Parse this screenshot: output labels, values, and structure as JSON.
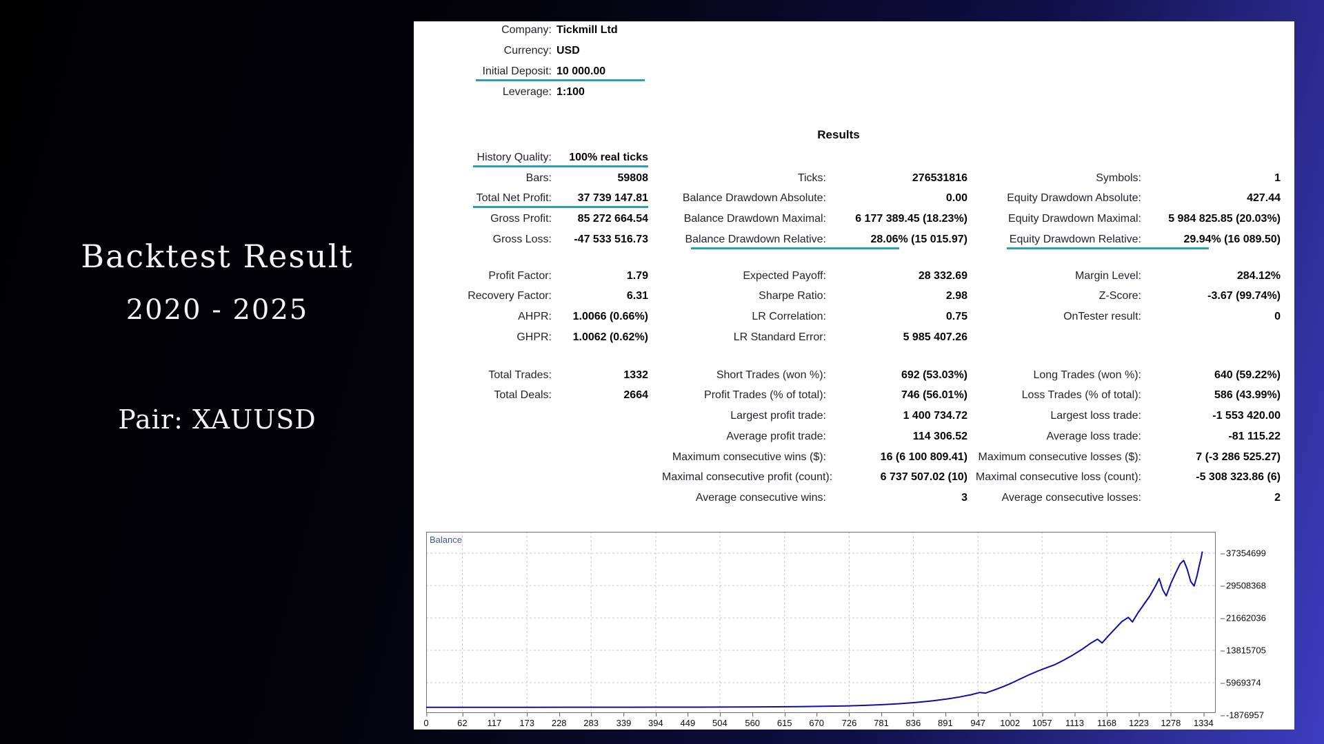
{
  "page": {
    "title_line1": "Backtest Result",
    "title_line2": "2020 - 2025",
    "pair_line": "Pair: XAUUSD"
  },
  "colors": {
    "background_left": "#010102",
    "background_right": "#3d3dc0",
    "underline_teal": "#2aa0b4",
    "curve_blue": "#0d0da8",
    "panel_white": "#ffffff"
  },
  "header": {
    "rows": [
      {
        "label": "Company:",
        "value": "Tickmill Ltd",
        "underline": false
      },
      {
        "label": "Currency:",
        "value": "USD",
        "underline": false
      },
      {
        "label": "Initial Deposit:",
        "value": "10 000.00",
        "underline": true
      },
      {
        "label": "Leverage:",
        "value": "1:100",
        "underline": false
      }
    ]
  },
  "results_title": "Results",
  "stats": {
    "sections": [
      {
        "col1": [
          {
            "label": "History Quality:",
            "value": "100% real ticks",
            "underline": true
          },
          {
            "label": "Bars:",
            "value": "59808",
            "underline": false
          },
          {
            "label": "Total Net Profit:",
            "value": "37 739 147.81",
            "underline": true
          },
          {
            "label": "Gross Profit:",
            "value": "85 272 664.54",
            "underline": false
          },
          {
            "label": "Gross Loss:",
            "value": "-47 533 516.73",
            "underline": false
          }
        ],
        "col2": [
          null,
          {
            "label": "Ticks:",
            "value": "276531816",
            "underline": false
          },
          {
            "label": "Balance Drawdown Absolute:",
            "value": "0.00",
            "underline": false
          },
          {
            "label": "Balance Drawdown Maximal:",
            "value": "6 177 389.45 (18.23%)",
            "underline": false
          },
          {
            "label": "Balance Drawdown Relative:",
            "value": "28.06% (15 015.97)",
            "underline": true
          }
        ],
        "col3": [
          null,
          {
            "label": "Symbols:",
            "value": "1",
            "underline": false
          },
          {
            "label": "Equity Drawdown Absolute:",
            "value": "427.44",
            "underline": false
          },
          {
            "label": "Equity Drawdown Maximal:",
            "value": "5 984 825.85 (20.03%)",
            "underline": false
          },
          {
            "label": "Equity Drawdown Relative:",
            "value": "29.94% (16 089.50)",
            "underline": true
          }
        ]
      },
      {
        "col1": [
          {
            "label": "Profit Factor:",
            "value": "1.79",
            "underline": false
          },
          {
            "label": "Recovery Factor:",
            "value": "6.31",
            "underline": false
          },
          {
            "label": "AHPR:",
            "value": "1.0066 (0.66%)",
            "underline": false
          },
          {
            "label": "GHPR:",
            "value": "1.0062 (0.62%)",
            "underline": false
          }
        ],
        "col2": [
          {
            "label": "Expected Payoff:",
            "value": "28 332.69",
            "underline": false
          },
          {
            "label": "Sharpe Ratio:",
            "value": "2.98",
            "underline": false
          },
          {
            "label": "LR Correlation:",
            "value": "0.75",
            "underline": false
          },
          {
            "label": "LR Standard Error:",
            "value": "5 985 407.26",
            "underline": false
          }
        ],
        "col3": [
          {
            "label": "Margin Level:",
            "value": "284.12%",
            "underline": false
          },
          {
            "label": "Z-Score:",
            "value": "-3.67 (99.74%)",
            "underline": false
          },
          {
            "label": "OnTester result:",
            "value": "0",
            "underline": false
          },
          null
        ]
      },
      {
        "col1": [
          {
            "label": "Total Trades:",
            "value": "1332",
            "underline": false
          },
          {
            "label": "Total Deals:",
            "value": "2664",
            "underline": false
          },
          null,
          null,
          null,
          null,
          null
        ],
        "col2": [
          {
            "label": "Short Trades (won %):",
            "value": "692 (53.03%)",
            "underline": false
          },
          {
            "label": "Profit Trades (% of total):",
            "value": "746 (56.01%)",
            "underline": false
          },
          {
            "label": "Largest profit trade:",
            "value": "1 400 734.72",
            "underline": false
          },
          {
            "label": "Average profit trade:",
            "value": "114 306.52",
            "underline": false
          },
          {
            "label": "Maximum consecutive wins ($):",
            "value": "16 (6 100 809.41)",
            "underline": false
          },
          {
            "label": "Maximal consecutive profit (count):",
            "value": "6 737 507.02 (10)",
            "underline": false
          },
          {
            "label": "Average consecutive wins:",
            "value": "3",
            "underline": false
          }
        ],
        "col3": [
          {
            "label": "Long Trades (won %):",
            "value": "640 (59.22%)",
            "underline": false
          },
          {
            "label": "Loss Trades (% of total):",
            "value": "586 (43.99%)",
            "underline": false
          },
          {
            "label": "Largest loss trade:",
            "value": "-1 553 420.00",
            "underline": false
          },
          {
            "label": "Average loss trade:",
            "value": "-81 115.22",
            "underline": false
          },
          {
            "label": "Maximum consecutive losses ($):",
            "value": "7 (-3 286 525.27)",
            "underline": false
          },
          {
            "label": "Maximal consecutive loss (count):",
            "value": "-5 308 323.86 (6)",
            "underline": false
          },
          {
            "label": "Average consecutive losses:",
            "value": "2",
            "underline": false
          }
        ]
      }
    ]
  },
  "chart_data": {
    "type": "line",
    "title": "Balance",
    "grid": "dashed",
    "x_ticks": [
      0,
      62,
      117,
      173,
      228,
      283,
      339,
      394,
      449,
      504,
      560,
      615,
      670,
      726,
      781,
      836,
      891,
      947,
      1002,
      1057,
      1113,
      1168,
      1223,
      1278,
      1334
    ],
    "y_ticks": [
      37354699,
      29508368,
      21662036,
      13815705,
      5969374,
      -1876957
    ],
    "x_max": 1355,
    "y_axis": {
      "top": 42530000,
      "bottom": -1380000
    },
    "series": [
      {
        "name": "Balance",
        "color": "#0d0da8",
        "points": [
          [
            0,
            10000
          ],
          [
            60,
            10500
          ],
          [
            120,
            11500
          ],
          [
            180,
            13000
          ],
          [
            240,
            15500
          ],
          [
            300,
            19000
          ],
          [
            350,
            24000
          ],
          [
            400,
            31000
          ],
          [
            450,
            42000
          ],
          [
            500,
            58000
          ],
          [
            550,
            82000
          ],
          [
            600,
            118000
          ],
          [
            640,
            165000
          ],
          [
            680,
            235000
          ],
          [
            720,
            340000
          ],
          [
            750,
            460000
          ],
          [
            780,
            630000
          ],
          [
            810,
            860000
          ],
          [
            840,
            1180000
          ],
          [
            870,
            1600000
          ],
          [
            895,
            2050000
          ],
          [
            915,
            2500000
          ],
          [
            935,
            3050000
          ],
          [
            950,
            3600000
          ],
          [
            960,
            3450000
          ],
          [
            975,
            4200000
          ],
          [
            990,
            5000000
          ],
          [
            1005,
            5900000
          ],
          [
            1020,
            6900000
          ],
          [
            1035,
            7900000
          ],
          [
            1050,
            8800000
          ],
          [
            1065,
            9600000
          ],
          [
            1080,
            10400000
          ],
          [
            1095,
            11500000
          ],
          [
            1110,
            12700000
          ],
          [
            1125,
            14000000
          ],
          [
            1140,
            15500000
          ],
          [
            1152,
            16500000
          ],
          [
            1160,
            15600000
          ],
          [
            1170,
            17200000
          ],
          [
            1182,
            19000000
          ],
          [
            1194,
            20800000
          ],
          [
            1205,
            21800000
          ],
          [
            1212,
            20700000
          ],
          [
            1222,
            23000000
          ],
          [
            1232,
            25000000
          ],
          [
            1242,
            27000000
          ],
          [
            1252,
            29500000
          ],
          [
            1258,
            31200000
          ],
          [
            1264,
            28500000
          ],
          [
            1270,
            27000000
          ],
          [
            1278,
            30000000
          ],
          [
            1286,
            32500000
          ],
          [
            1294,
            34800000
          ],
          [
            1300,
            35600000
          ],
          [
            1306,
            33500000
          ],
          [
            1312,
            30500000
          ],
          [
            1318,
            29400000
          ],
          [
            1323,
            32000000
          ],
          [
            1327,
            34500000
          ],
          [
            1330,
            36300000
          ],
          [
            1332,
            37749148
          ]
        ]
      }
    ]
  }
}
